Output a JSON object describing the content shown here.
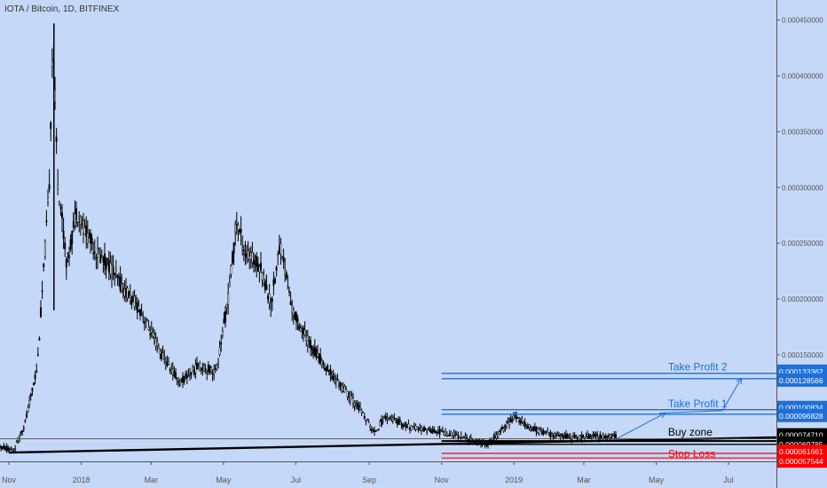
{
  "chart_data": {
    "type": "candlestick",
    "title": "IOTA / Bitcoin, 1D, BITFINEX",
    "y_ticks": [
      "0.000450000",
      "0.000400000",
      "0.000350000",
      "0.000300000",
      "0.000250000",
      "0.000200000",
      "0.000150000"
    ],
    "x_ticks": [
      "Nov",
      "2018",
      "Mar",
      "May",
      "Jul",
      "Sep",
      "Nov",
      "2019",
      "Mar",
      "May",
      "Jul"
    ],
    "ylim": [
      5.45e-05,
      0.000468
    ],
    "price_path": [
      [
        "2017-10-05",
        8e-05
      ],
      [
        "2017-10-20",
        7e-05
      ],
      [
        "2017-11-05",
        6.4e-05
      ],
      [
        "2017-11-15",
        9e-05
      ],
      [
        "2017-11-25",
        0.00014
      ],
      [
        "2017-12-05",
        0.0003
      ],
      [
        "2017-12-08",
        0.00044
      ],
      [
        "2017-12-12",
        0.00031
      ],
      [
        "2017-12-20",
        0.00023
      ],
      [
        "2017-12-28",
        0.00028
      ],
      [
        "2018-01-05",
        0.00026
      ],
      [
        "2018-01-15",
        0.00024
      ],
      [
        "2018-01-25",
        0.00023
      ],
      [
        "2018-02-05",
        0.00021
      ],
      [
        "2018-02-20",
        0.00019
      ],
      [
        "2018-03-10",
        0.00015
      ],
      [
        "2018-03-25",
        0.000125
      ],
      [
        "2018-04-10",
        0.00014
      ],
      [
        "2018-04-25",
        0.000135
      ],
      [
        "2018-05-05",
        0.0002
      ],
      [
        "2018-05-12",
        0.00027
      ],
      [
        "2018-05-20",
        0.00024
      ],
      [
        "2018-06-01",
        0.00023
      ],
      [
        "2018-06-10",
        0.000195
      ],
      [
        "2018-06-18",
        0.00025
      ],
      [
        "2018-06-28",
        0.00019
      ],
      [
        "2018-07-10",
        0.000165
      ],
      [
        "2018-07-25",
        0.00014
      ],
      [
        "2018-08-10",
        0.00012
      ],
      [
        "2018-08-25",
        0.0001
      ],
      [
        "2018-09-05",
        8e-05
      ],
      [
        "2018-09-15",
        9.5e-05
      ],
      [
        "2018-10-05",
        8.5e-05
      ],
      [
        "2018-10-25",
        8.2e-05
      ],
      [
        "2018-11-15",
        7.8e-05
      ],
      [
        "2018-11-25",
        7.4e-05
      ],
      [
        "2018-12-10",
        7e-05
      ],
      [
        "2018-12-20",
        8e-05
      ],
      [
        "2019-01-01",
        9.5e-05
      ],
      [
        "2019-01-15",
        8.5e-05
      ],
      [
        "2019-02-01",
        7.8e-05
      ],
      [
        "2019-02-20",
        7.6e-05
      ],
      [
        "2019-03-10",
        7.7e-05
      ],
      [
        "2019-03-28",
        7.7e-05
      ]
    ],
    "price_levels": [
      {
        "value": 0.000133362,
        "label": "0.000133362",
        "color": "#1e6fd9"
      },
      {
        "value": 0.000128566,
        "label": "0.000128566",
        "color": "#1e6fd9"
      },
      {
        "value": 0.000100834,
        "label": "0.000100834",
        "color": "#1e6fd9"
      },
      {
        "value": 9.6828e-05,
        "label": "0.000096828",
        "color": "#1e6fd9"
      },
      {
        "value": 7.471e-05,
        "label": "0.000074710",
        "color": "#000000"
      },
      {
        "value": 7.2901e-05,
        "label": "0.000072901",
        "color": "#000000"
      },
      {
        "value": 6.9785e-05,
        "label": "0.000069785",
        "color": "#000000"
      },
      {
        "value": 6.1661e-05,
        "label": "0.000061661",
        "color": "#ff0000"
      },
      {
        "value": 5.7544e-05,
        "label": "0.000057544",
        "color": "#ff0000"
      }
    ],
    "annotations": [
      {
        "text": "Take Profit 2",
        "color": "#1e6fd9"
      },
      {
        "text": "Take Profit 1",
        "color": "#1e6fd9"
      },
      {
        "text": "Buy zone",
        "color": "#000000"
      },
      {
        "text": "Stop Loss",
        "color": "#ff0000"
      }
    ],
    "trendline": [
      [
        "2017-11-01",
        6.4e-05
      ],
      [
        "2019-08-20",
        7.6e-05
      ]
    ],
    "colors": {
      "background": "#c5d8f7",
      "candles": "#000000",
      "targets": "#1e6fd9",
      "stop": "#ff0000"
    }
  }
}
